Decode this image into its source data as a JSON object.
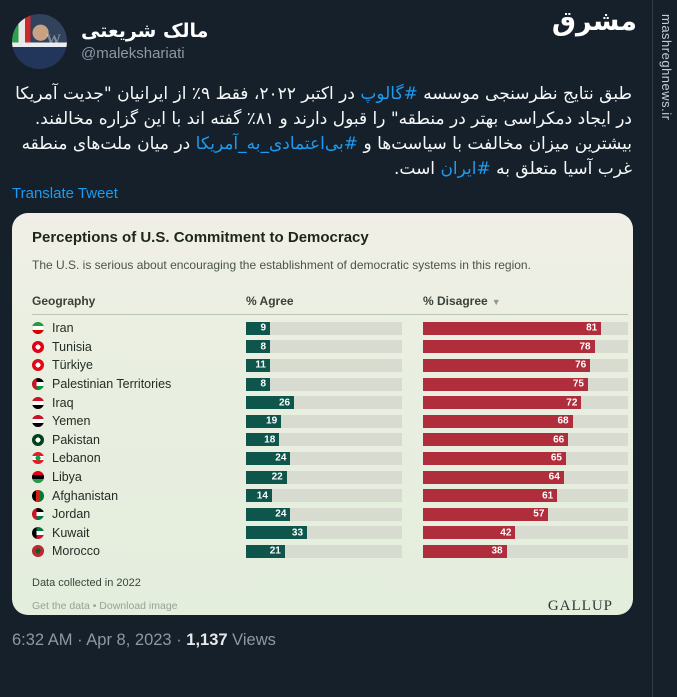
{
  "header": {
    "display_name": "مالک شریعتی",
    "handle": "@malekshariati",
    "brand_logo": "مشرق",
    "watermark_url": "mashreghnews.ir",
    "avatar_watermark": "W"
  },
  "tweet": {
    "segments": [
      {
        "type": "text",
        "text": "طبق نتایج نظرسنجی موسسه "
      },
      {
        "type": "hashtag",
        "text": "#گالوپ"
      },
      {
        "type": "text",
        "text": " در اکتبر ۲۰۲۲، فقط ۹٪ از ایرانیان \"جدیت آمریکا در ایجاد دمکراسی بهتر در منطقه\" را قبول دارند و ۸۱٪ گفته اند با این گزاره مخالفند.\nبیشترین میزان مخالفت با سیاست‌ها و "
      },
      {
        "type": "hashtag",
        "text": "#بی‌اعتمادی_به_آمریکا"
      },
      {
        "type": "text",
        "text": " در میان ملت‌های منطقه غرب آسیا متعلق به "
      },
      {
        "type": "hashtag",
        "text": "#ایران"
      },
      {
        "type": "text",
        "text": " است."
      }
    ],
    "translate_label": "Translate Tweet"
  },
  "chart_data": {
    "type": "bar",
    "title": "Perceptions of U.S. Commitment to Democracy",
    "subtitle": "The U.S. is serious about encouraging the establishment of democratic systems in this region.",
    "columns": [
      "Geography",
      "% Agree",
      "% Disagree"
    ],
    "sorted_by": "% Disagree",
    "sort_indicator": "▼",
    "categories": [
      "Iran",
      "Tunisia",
      "Türkiye",
      "Palestinian Territories",
      "Iraq",
      "Yemen",
      "Pakistan",
      "Lebanon",
      "Libya",
      "Afghanistan",
      "Jordan",
      "Kuwait",
      "Morocco"
    ],
    "series": [
      {
        "name": "% Agree",
        "values": [
          9,
          8,
          11,
          8,
          26,
          19,
          18,
          24,
          22,
          14,
          24,
          33,
          21
        ]
      },
      {
        "name": "% Disagree",
        "values": [
          81,
          78,
          76,
          75,
          72,
          68,
          66,
          65,
          64,
          61,
          57,
          42,
          38
        ]
      }
    ],
    "value_range": [
      0,
      100
    ],
    "grid": false,
    "legend_position": "none",
    "colors": {
      "agree_bar": "#0e564b",
      "disagree_bar": "#b02d3c",
      "track": "#d8dbd0",
      "card_bg": "#eaefe1"
    },
    "flags": [
      {
        "dir": "v",
        "colors": [
          "#239f40",
          "#ffffff",
          "#da0000"
        ]
      },
      {
        "dir": "v",
        "colors": [
          "#e70013"
        ],
        "emblem": "#ffffff"
      },
      {
        "dir": "v",
        "colors": [
          "#e30a17"
        ],
        "emblem": "#ffffff"
      },
      {
        "dir": "v",
        "colors": [
          "#000000",
          "#ffffff",
          "#009736"
        ],
        "band": "#ce1126"
      },
      {
        "dir": "v",
        "colors": [
          "#ce1126",
          "#ffffff",
          "#000000"
        ]
      },
      {
        "dir": "v",
        "colors": [
          "#ce1126",
          "#ffffff",
          "#000000"
        ]
      },
      {
        "dir": "v",
        "colors": [
          "#01411c"
        ],
        "emblem": "#ffffff"
      },
      {
        "dir": "v",
        "colors": [
          "#ed1c24",
          "#ffffff",
          "#ed1c24"
        ],
        "emblem": "#00a651"
      },
      {
        "dir": "v",
        "colors": [
          "#e70013",
          "#000000",
          "#239e46"
        ]
      },
      {
        "dir": "h",
        "colors": [
          "#000000",
          "#d32011",
          "#007a36"
        ]
      },
      {
        "dir": "v",
        "colors": [
          "#000000",
          "#ffffff",
          "#007a3d"
        ],
        "band": "#ce1126"
      },
      {
        "dir": "v",
        "colors": [
          "#007a3d",
          "#ffffff",
          "#ce1126"
        ],
        "band": "#000000"
      },
      {
        "dir": "v",
        "colors": [
          "#c1272d"
        ],
        "emblem": "#006233"
      }
    ],
    "footnote": "Data collected in 2022",
    "links_label": "Get the data • Download image",
    "source": "GALLUP"
  },
  "footer": {
    "timestamp": "6:32 AM · Apr 8, 2023",
    "separator": " · ",
    "views_count": "1,137",
    "views_label": "Views"
  }
}
